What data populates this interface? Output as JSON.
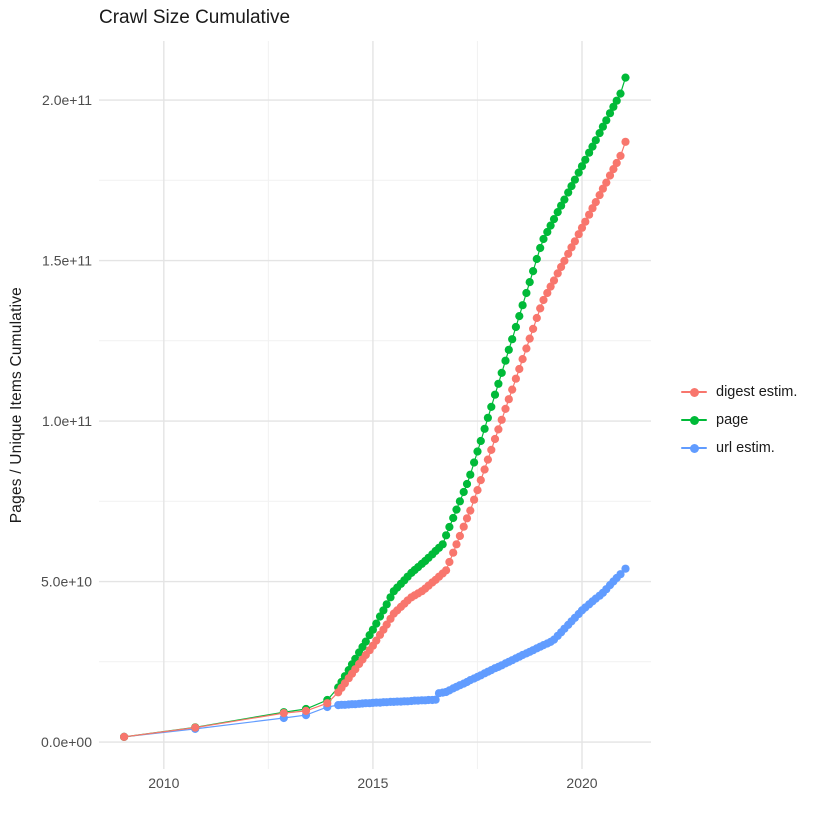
{
  "page_title": "Crawl Size Cumulative",
  "colors": {
    "background": "#FFFFFF",
    "grid_major": "#E4E4E4",
    "grid_minor": "#F1F1F1",
    "axis_text": "#4D4D4D",
    "title_text": "#1A1A1A",
    "digest": "#F8766D",
    "page": "#00BA38",
    "url": "#619CFF"
  },
  "chart_data": {
    "type": "line",
    "title": "Crawl Size Cumulative",
    "xlabel": "",
    "ylabel": "Pages / Unique Items Cumulative",
    "legend_position": "right-middle",
    "grid": {
      "major": true,
      "minor": true,
      "background": "white"
    },
    "y_unit_multiplier": 1000000000.0,
    "y_unit_note": "values stored in billions (1e9) of pages / unique items",
    "x_ticks": [
      {
        "value": 2010,
        "label": "2010"
      },
      {
        "value": 2015,
        "label": "2015"
      },
      {
        "value": 2020,
        "label": "2020"
      }
    ],
    "x_minor_ticks": [
      2012.5,
      2017.5
    ],
    "y_ticks": [
      {
        "value": 0,
        "label": "0.0e+00"
      },
      {
        "value": 50,
        "label": "5.0e+10"
      },
      {
        "value": 100,
        "label": "1.0e+11"
      },
      {
        "value": 150,
        "label": "1.5e+11"
      },
      {
        "value": 200,
        "label": "2.0e+11"
      }
    ],
    "y_minor_ticks": [
      25,
      75,
      125,
      175
    ],
    "xlim": [
      2008.45,
      2021.65
    ],
    "ylim": [
      -8.4,
      218.4
    ],
    "x": [
      2009.05,
      2010.75,
      2012.87,
      2013.4,
      2013.91,
      2014.17,
      2014.25,
      2014.33,
      2014.42,
      2014.5,
      2014.58,
      2014.67,
      2014.75,
      2014.83,
      2014.92,
      2015.0,
      2015.08,
      2015.17,
      2015.25,
      2015.33,
      2015.42,
      2015.5,
      2015.58,
      2015.67,
      2015.75,
      2015.83,
      2015.92,
      2016.0,
      2016.08,
      2016.17,
      2016.25,
      2016.33,
      2016.42,
      2016.5,
      2016.58,
      2016.67,
      2016.75,
      2016.83,
      2016.92,
      2017.0,
      2017.08,
      2017.17,
      2017.25,
      2017.33,
      2017.42,
      2017.5,
      2017.58,
      2017.67,
      2017.75,
      2017.83,
      2017.92,
      2018.0,
      2018.08,
      2018.17,
      2018.25,
      2018.33,
      2018.42,
      2018.5,
      2018.58,
      2018.67,
      2018.75,
      2018.83,
      2018.92,
      2019.0,
      2019.08,
      2019.17,
      2019.25,
      2019.33,
      2019.42,
      2019.5,
      2019.58,
      2019.67,
      2019.75,
      2019.83,
      2019.92,
      2020.0,
      2020.08,
      2020.17,
      2020.25,
      2020.33,
      2020.42,
      2020.5,
      2020.58,
      2020.67,
      2020.75,
      2020.83,
      2020.92,
      2021.04
    ],
    "series": [
      {
        "name": "digest estim.",
        "color": "#F8766D",
        "values": [
          1.6,
          4.5,
          9.0,
          9.7,
          12.1,
          15.5,
          16.9,
          18.3,
          19.9,
          21.3,
          22.7,
          24.3,
          25.7,
          27.1,
          28.6,
          30.0,
          31.6,
          33.4,
          35.0,
          36.6,
          38.4,
          40.0,
          41.0,
          42.1,
          43.1,
          44.1,
          45.1,
          45.7,
          46.3,
          47.0,
          47.8,
          48.7,
          49.7,
          50.5,
          51.5,
          52.5,
          53.5,
          56.1,
          59.0,
          61.6,
          64.2,
          67.1,
          69.7,
          72.1,
          75.5,
          78.5,
          81.6,
          84.9,
          88.0,
          91.0,
          94.4,
          97.4,
          100.4,
          103.8,
          106.8,
          109.8,
          113.2,
          116.2,
          119.3,
          122.6,
          125.7,
          128.7,
          132.1,
          135.1,
          137.7,
          139.9,
          141.9,
          143.8,
          146.0,
          148.0,
          149.9,
          152.1,
          154.1,
          156.0,
          158.2,
          160.2,
          162.1,
          164.3,
          166.3,
          168.2,
          170.4,
          172.4,
          174.3,
          176.5,
          178.5,
          180.4,
          182.6,
          187.0
        ]
      },
      {
        "name": "page",
        "color": "#00BA38",
        "values": [
          1.6,
          4.6,
          9.3,
          10.3,
          13.1,
          17.0,
          18.7,
          20.5,
          22.4,
          24.2,
          25.9,
          27.9,
          29.6,
          31.3,
          33.3,
          35.0,
          36.9,
          39.1,
          41.0,
          42.9,
          45.1,
          47.0,
          48.1,
          49.3,
          50.4,
          51.5,
          52.7,
          53.6,
          54.5,
          55.5,
          56.4,
          57.4,
          58.5,
          59.5,
          60.5,
          61.6,
          64.4,
          67.0,
          69.8,
          72.4,
          75.0,
          77.9,
          80.4,
          83.3,
          87.1,
          90.5,
          93.8,
          97.6,
          101.0,
          104.4,
          108.2,
          111.6,
          115.0,
          118.8,
          122.2,
          125.5,
          129.3,
          132.7,
          136.1,
          139.9,
          143.3,
          146.7,
          150.5,
          153.9,
          156.7,
          158.9,
          160.9,
          162.9,
          165.1,
          167.1,
          169.0,
          171.2,
          173.2,
          175.2,
          177.4,
          179.4,
          181.4,
          183.6,
          185.5,
          187.5,
          189.7,
          191.7,
          193.7,
          195.9,
          197.9,
          199.8,
          202.0,
          207.0
        ]
      },
      {
        "name": "url estim.",
        "color": "#619CFF",
        "values": [
          1.6,
          4.1,
          7.5,
          8.4,
          10.9,
          11.5,
          11.6,
          11.6,
          11.7,
          11.8,
          11.8,
          11.9,
          12.0,
          12.1,
          12.1,
          12.2,
          12.3,
          12.3,
          12.4,
          12.4,
          12.5,
          12.5,
          12.6,
          12.6,
          12.7,
          12.7,
          12.8,
          12.9,
          12.9,
          13.0,
          13.0,
          13.1,
          13.1,
          13.2,
          15.2,
          15.4,
          15.6,
          16.1,
          16.7,
          17.2,
          17.7,
          18.2,
          18.7,
          19.3,
          19.8,
          20.3,
          20.8,
          21.4,
          21.9,
          22.4,
          23.0,
          23.4,
          23.9,
          24.5,
          25.0,
          25.5,
          26.1,
          26.6,
          27.1,
          27.6,
          28.1,
          28.6,
          29.2,
          29.7,
          30.2,
          30.7,
          31.2,
          31.9,
          33.1,
          34.2,
          35.3,
          36.5,
          37.6,
          38.7,
          39.9,
          41.0,
          41.9,
          42.9,
          43.8,
          44.7,
          45.6,
          46.5,
          47.6,
          48.9,
          50.0,
          51.1,
          52.3,
          54.0
        ]
      }
    ],
    "draw_order": [
      2,
      1,
      0
    ]
  }
}
